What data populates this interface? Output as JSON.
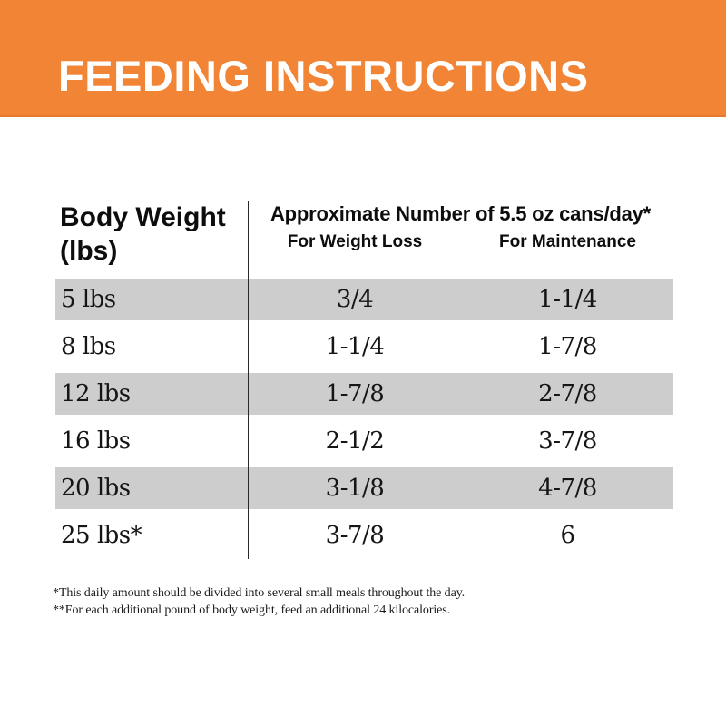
{
  "banner": {
    "title": "FEEDING INSTRUCTIONS",
    "bg_color": "#F28435",
    "text_color": "#FFFFFF"
  },
  "table": {
    "header": {
      "col1_line1": "Body Weight",
      "col1_line2": "(lbs)",
      "span_title": "Approximate Number of 5.5 oz cans/day*",
      "sub_col1": "For Weight Loss",
      "sub_col2": "For Maintenance"
    },
    "stripe_color": "#CDCDCD",
    "rows": [
      {
        "weight": "5 lbs",
        "weight_loss": "3/4",
        "maintenance": "1-1/4"
      },
      {
        "weight": "8 lbs",
        "weight_loss": "1-1/4",
        "maintenance": "1-7/8"
      },
      {
        "weight": "12 lbs",
        "weight_loss": "1-7/8",
        "maintenance": "2-7/8"
      },
      {
        "weight": "16 lbs",
        "weight_loss": "2-1/2",
        "maintenance": "3-7/8"
      },
      {
        "weight": "20 lbs",
        "weight_loss": "3-1/8",
        "maintenance": "4-7/8"
      },
      {
        "weight": "25 lbs*",
        "weight_loss": "3-7/8",
        "maintenance": "6"
      }
    ]
  },
  "footnotes": {
    "line1": "*This daily amount should be divided into several small meals throughout the day.",
    "line2": "**For each additional pound of body weight, feed an additional 24 kilocalories."
  }
}
